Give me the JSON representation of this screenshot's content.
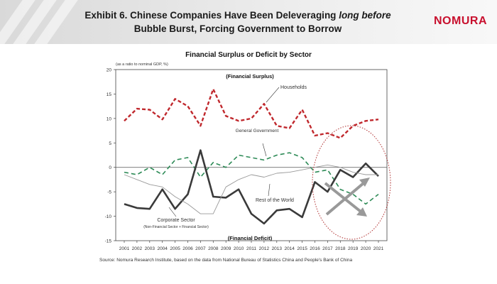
{
  "header": {
    "title_part1": "Exhibit 6. Chinese Companies Have Been Deleveraging ",
    "title_italic": "long before",
    "title_line2": "Bubble Burst, Forcing Government to Borrow",
    "logo": "NOMURA"
  },
  "colors": {
    "households": "#c0282d",
    "government": "#2e8b57",
    "corporate": "#3a3a3a",
    "rest_of_world": "#999999",
    "circle": "#b03030"
  },
  "chart_data": {
    "type": "line",
    "title": "Financial Surplus or Deficit by Sector",
    "subtitle": "(as a ratio to nominal GDP, %)",
    "x": [
      "2001",
      "2002",
      "2003",
      "2004",
      "2005",
      "2006",
      "2007",
      "2008",
      "2009",
      "2010",
      "2011",
      "2012",
      "2013",
      "2014",
      "2015",
      "2016",
      "2017",
      "2018",
      "2019",
      "2020",
      "2021"
    ],
    "ylim": [
      -15,
      20
    ],
    "yticks": [
      20,
      15,
      10,
      5,
      0,
      -5,
      -10,
      -15
    ],
    "series": [
      {
        "name": "Households",
        "values": [
          9.5,
          12,
          11.8,
          9.8,
          14,
          12.5,
          8.5,
          16,
          10.5,
          9.5,
          10,
          13,
          8.5,
          8,
          11.8,
          6.5,
          7,
          6,
          8.5,
          9.5,
          9.8
        ]
      },
      {
        "name": "General Government",
        "values": [
          -1,
          -1.5,
          0,
          -1.5,
          1.5,
          2,
          -2,
          1,
          0,
          2.5,
          2,
          1.5,
          2.5,
          3,
          2,
          -1,
          -0.5,
          -4.5,
          -5.5,
          -7.5,
          -5.5
        ]
      },
      {
        "name": "Corporate Sector",
        "values": [
          -7.5,
          -8.3,
          -8.5,
          -4.5,
          -8.5,
          -5.5,
          3.5,
          -6,
          -6.2,
          -4.5,
          -9.5,
          -11.5,
          -8.8,
          -8.5,
          -10.2,
          -3,
          -5,
          -0.5,
          -2,
          0.8,
          -1.8
        ]
      },
      {
        "name": "Rest of the World",
        "values": [
          -1.5,
          -2.5,
          -3.5,
          -4,
          -6,
          -7.5,
          -9.5,
          -9.5,
          -4,
          -2.5,
          -1.5,
          -2,
          -1.2,
          -1,
          -0.5,
          0,
          0.5,
          0,
          -1,
          -1.5,
          -1.5
        ]
      }
    ],
    "annotations": {
      "surplus": "(Financial Surplus)",
      "deficit": "(Financial Deficit)",
      "households": "Households",
      "government": "General Government",
      "rest_of_world": "Rest of the World",
      "corporate": "Corporate Sector",
      "corporate_note": "(Non-Financial Sector + Financial Sector)"
    }
  },
  "source": "Source: Nomura Research Institute, based on the data from National Bureau of Statistics China and People's Bank of China"
}
